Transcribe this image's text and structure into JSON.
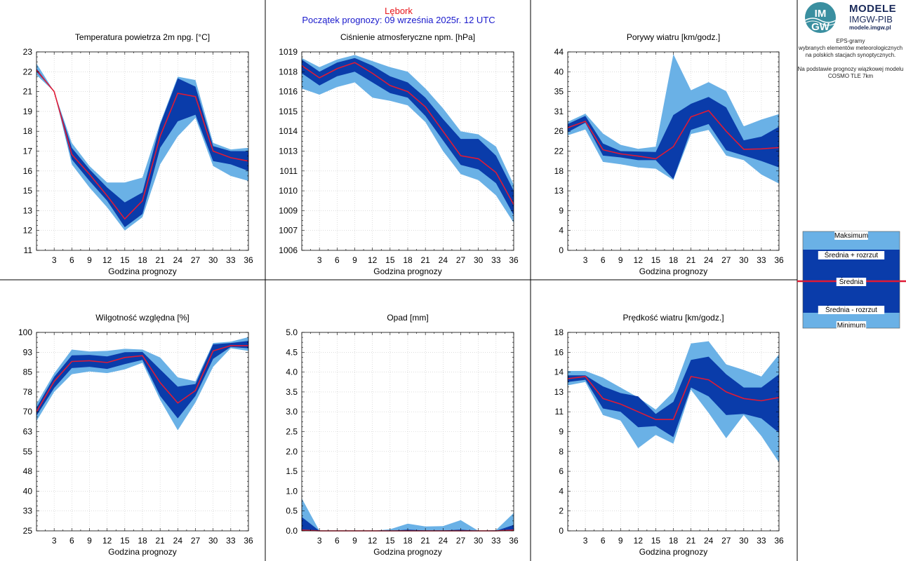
{
  "header": {
    "station": "Lębork",
    "forecast_start": "Początek prognozy: 09 września 2025r. 12 UTC"
  },
  "logo": {
    "title": "MODELE",
    "subtitle": "IMGW-PIB",
    "url": "modele.imgw.pl",
    "mark_top": "IM",
    "mark_bottom": "GW"
  },
  "side_description": [
    "EPS-gramy",
    "wybranych elementów meteorologicznych",
    "na polskich stacjach  synoptycznych.",
    "",
    "Na podstawie prognozy wiązkowej modelu",
    "COSMO TLE 7km"
  ],
  "legend": {
    "max": "Maksimum",
    "upper": "Średnia + rozrzut",
    "mean": "Średnia",
    "lower": "Średnia - rozrzut",
    "min": "Minimum"
  },
  "colors": {
    "outer_band": "#6ab1e6",
    "inner_band": "#0a3caa",
    "mean_line": "#e01a35",
    "grid": "#c8c8c8"
  },
  "chart_data": [
    {
      "type": "area",
      "title": "Temperatura powietrza 2m npg. [°C]",
      "xlabel": "Godzina prognozy",
      "x": [
        0,
        3,
        6,
        9,
        12,
        15,
        18,
        21,
        24,
        27,
        30,
        33,
        36
      ],
      "x_ticks": [
        "3",
        "6",
        "9",
        "12",
        "15",
        "18",
        "21",
        "24",
        "27",
        "30",
        "33",
        "36"
      ],
      "ylim": [
        11,
        23
      ],
      "y_ticks": [
        "11",
        "12",
        "13",
        "15",
        "16",
        "17",
        "18",
        "19",
        "21",
        "22",
        "23"
      ],
      "min": [
        21.6,
        20.6,
        16.2,
        14.8,
        13.6,
        12.2,
        13.0,
        16.2,
        17.9,
        19.0,
        16.1,
        15.5,
        15.2
      ],
      "lower": [
        21.8,
        20.6,
        16.5,
        15.2,
        14.0,
        12.4,
        13.2,
        17.2,
        18.8,
        19.2,
        16.4,
        16.2,
        15.8
      ],
      "mean": [
        21.9,
        20.6,
        16.8,
        15.6,
        14.3,
        12.9,
        14.0,
        17.9,
        20.5,
        20.3,
        17.0,
        16.6,
        16.4
      ],
      "upper": [
        22.0,
        20.6,
        17.2,
        15.9,
        14.8,
        13.9,
        14.5,
        18.6,
        21.4,
        20.9,
        17.3,
        17.0,
        17.0
      ],
      "max": [
        22.3,
        20.6,
        17.5,
        16.1,
        15.1,
        15.1,
        15.4,
        18.7,
        21.5,
        21.3,
        17.5,
        17.1,
        17.2
      ]
    },
    {
      "type": "area",
      "title": "Ciśnienie atmosferyczne npm. [hPa]",
      "xlabel": "Godzina prognozy",
      "x": [
        0,
        3,
        6,
        9,
        12,
        15,
        18,
        21,
        24,
        27,
        30,
        33,
        36
      ],
      "x_ticks": [
        "3",
        "6",
        "9",
        "12",
        "15",
        "18",
        "21",
        "24",
        "27",
        "30",
        "33",
        "36"
      ],
      "ylim": [
        1006,
        1019
      ],
      "y_ticks": [
        "1006",
        "1007",
        "1009",
        "1010",
        "1011",
        "1013",
        "1014",
        "1015",
        "1016",
        "1018",
        "1019"
      ],
      "min": [
        1016.6,
        1016.2,
        1016.7,
        1017.0,
        1016.0,
        1015.8,
        1015.5,
        1014.4,
        1012.5,
        1011.0,
        1010.6,
        1009.6,
        1007.8
      ],
      "lower": [
        1017.6,
        1016.8,
        1017.4,
        1017.7,
        1017.0,
        1016.3,
        1016.0,
        1014.8,
        1013.2,
        1011.6,
        1011.3,
        1010.4,
        1008.3
      ],
      "mean": [
        1018.1,
        1017.3,
        1017.9,
        1018.3,
        1017.6,
        1016.8,
        1016.4,
        1015.4,
        1013.8,
        1012.2,
        1012.0,
        1011.1,
        1009.0
      ],
      "upper": [
        1018.5,
        1017.7,
        1018.3,
        1018.6,
        1018.1,
        1017.4,
        1017.0,
        1016.0,
        1014.6,
        1013.3,
        1013.3,
        1012.2,
        1009.9
      ],
      "max": [
        1018.6,
        1018.0,
        1018.5,
        1018.8,
        1018.4,
        1018.0,
        1017.7,
        1016.6,
        1015.3,
        1013.8,
        1013.6,
        1012.8,
        1010.3
      ]
    },
    {
      "type": "area",
      "title": "Porywy wiatru [km/godz.]",
      "xlabel": "Godzina prognozy",
      "x": [
        0,
        3,
        6,
        9,
        12,
        15,
        18,
        21,
        24,
        27,
        30,
        33,
        36
      ],
      "x_ticks": [
        "3",
        "6",
        "9",
        "12",
        "15",
        "18",
        "21",
        "24",
        "27",
        "30",
        "33",
        "36"
      ],
      "ylim": [
        0,
        44
      ],
      "y_ticks": [
        "0",
        "4",
        "9",
        "13",
        "18",
        "22",
        "26",
        "31",
        "35",
        "40",
        "44"
      ],
      "min": [
        25.5,
        26.8,
        19.6,
        19.1,
        18.4,
        18.1,
        15.6,
        25.8,
        26.7,
        21.0,
        20.0,
        16.8,
        14.8
      ],
      "lower": [
        26.2,
        28.3,
        21.0,
        20.6,
        20.0,
        20.0,
        15.8,
        26.7,
        28.0,
        22.2,
        21.0,
        19.8,
        18.4
      ],
      "mean": [
        27.2,
        28.6,
        22.3,
        21.4,
        20.9,
        20.3,
        23.0,
        29.6,
        31.0,
        26.4,
        22.4,
        22.5,
        22.8
      ],
      "upper": [
        28.0,
        29.8,
        23.7,
        22.0,
        21.9,
        21.8,
        30.0,
        32.5,
        34.0,
        31.7,
        24.4,
        25.2,
        27.4
      ],
      "max": [
        28.5,
        30.3,
        25.9,
        23.4,
        22.5,
        23.0,
        43.5,
        35.5,
        37.3,
        35.3,
        27.5,
        29.0,
        30.2
      ]
    },
    {
      "type": "area",
      "title": "Wilgotność względna [%]",
      "xlabel": "Godzina prognozy",
      "x": [
        0,
        3,
        6,
        9,
        12,
        15,
        18,
        21,
        24,
        27,
        30,
        33,
        36
      ],
      "x_ticks": [
        "3",
        "6",
        "9",
        "12",
        "15",
        "18",
        "21",
        "24",
        "27",
        "30",
        "33",
        "36"
      ],
      "ylim": [
        25,
        100
      ],
      "y_ticks": [
        "25",
        "33",
        "40",
        "48",
        "55",
        "63",
        "70",
        "78",
        "85",
        "93",
        "100"
      ],
      "min": [
        66.5,
        77.5,
        84.2,
        85.2,
        84.6,
        86.0,
        88.5,
        74.5,
        63.0,
        73.5,
        87.0,
        94.0,
        93.0
      ],
      "lower": [
        68.5,
        79.0,
        86.5,
        87.0,
        86.2,
        88.0,
        89.6,
        76.0,
        67.5,
        76.0,
        90.0,
        94.5,
        94.0
      ],
      "mean": [
        70.0,
        81.5,
        89.0,
        89.3,
        88.6,
        90.5,
        91.2,
        81.0,
        73.3,
        78.0,
        93.0,
        95.0,
        95.0
      ],
      "upper": [
        71.5,
        83.2,
        91.3,
        91.5,
        90.9,
        92.5,
        92.6,
        86.0,
        79.5,
        80.5,
        95.5,
        96.0,
        96.8
      ],
      "max": [
        73.0,
        84.5,
        93.5,
        92.8,
        93.0,
        93.8,
        93.5,
        90.5,
        83.0,
        81.5,
        96.0,
        96.5,
        98.2
      ]
    },
    {
      "type": "area",
      "title": "Opad [mm]",
      "xlabel": "Godzina prognozy",
      "x": [
        0,
        3,
        6,
        9,
        12,
        15,
        18,
        21,
        24,
        27,
        30,
        33,
        36
      ],
      "x_ticks": [
        "3",
        "6",
        "9",
        "12",
        "15",
        "18",
        "21",
        "24",
        "27",
        "30",
        "33",
        "36"
      ],
      "ylim": [
        0.0,
        5.0
      ],
      "y_ticks": [
        "0.0",
        "0.5",
        "1.0",
        "1.5",
        "2.0",
        "2.5",
        "3.0",
        "3.5",
        "4.0",
        "4.5",
        "5.0"
      ],
      "min": [
        0,
        0,
        0,
        0,
        0,
        0,
        0,
        0,
        0,
        0,
        0,
        0,
        0
      ],
      "lower": [
        0,
        0,
        0,
        0,
        0,
        0,
        0,
        0,
        0,
        0,
        0,
        0,
        0
      ],
      "mean": [
        0.02,
        0,
        0,
        0,
        0,
        0,
        0,
        0,
        0,
        0,
        0,
        0,
        0.02
      ],
      "upper": [
        0.35,
        0,
        0,
        0,
        0,
        0,
        0.03,
        0.01,
        0.01,
        0.03,
        0,
        0,
        0.15
      ],
      "max": [
        0.82,
        0,
        0,
        0,
        0,
        0.04,
        0.18,
        0.11,
        0.12,
        0.27,
        0,
        0.02,
        0.45
      ]
    },
    {
      "type": "area",
      "title": "Prędkość wiatru [km/godz.]",
      "xlabel": "Godzina prognozy",
      "x": [
        0,
        3,
        6,
        9,
        12,
        15,
        18,
        21,
        24,
        27,
        30,
        33,
        36
      ],
      "x_ticks": [
        "3",
        "6",
        "9",
        "12",
        "15",
        "18",
        "21",
        "24",
        "27",
        "30",
        "33",
        "36"
      ],
      "ylim": [
        0,
        18
      ],
      "y_ticks": [
        "0",
        "2",
        "4",
        "6",
        "8",
        "9",
        "11",
        "13",
        "14",
        "16",
        "18"
      ],
      "min": [
        13.2,
        13.5,
        10.5,
        10.0,
        7.5,
        8.7,
        7.9,
        12.8,
        10.7,
        8.4,
        10.5,
        8.6,
        6.2
      ],
      "lower": [
        13.5,
        13.7,
        11.1,
        10.8,
        9.4,
        9.5,
        8.5,
        13.0,
        12.2,
        10.5,
        10.6,
        10.2,
        8.9
      ],
      "mean": [
        13.8,
        14.0,
        12.0,
        11.5,
        10.8,
        10.1,
        10.1,
        14.0,
        13.7,
        12.6,
        12.0,
        11.8,
        12.1
      ],
      "upper": [
        14.1,
        14.1,
        13.1,
        12.5,
        12.2,
        10.6,
        11.7,
        15.5,
        15.8,
        14.2,
        13.0,
        13.0,
        14.2
      ],
      "max": [
        14.5,
        14.5,
        13.9,
        13.0,
        12.1,
        11.0,
        12.6,
        17.0,
        17.2,
        15.1,
        14.6,
        14.0,
        16.0
      ]
    }
  ]
}
